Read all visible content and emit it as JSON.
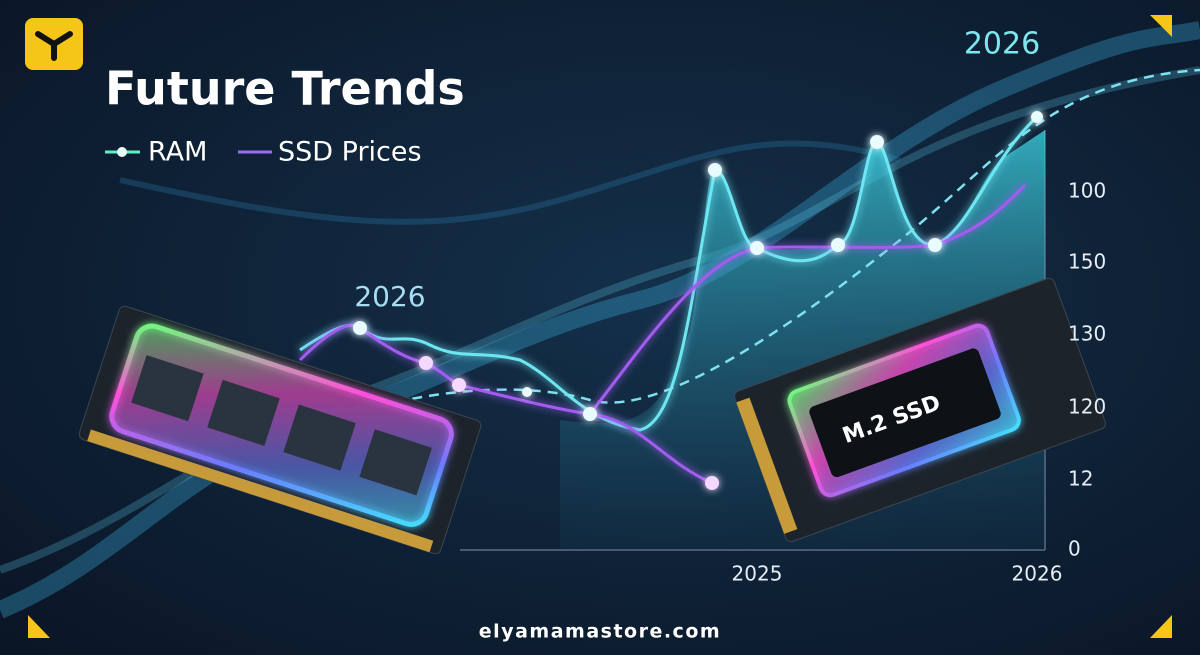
{
  "header": {
    "title": "Future Trends",
    "legend": [
      "RAM",
      "SSD Prices"
    ]
  },
  "annotations": [
    "2026",
    "2026"
  ],
  "axis": {
    "y_labels": [
      "100",
      "150",
      "130",
      "120",
      "12",
      "0"
    ],
    "x_labels": [
      "2025",
      "2026"
    ]
  },
  "ssd_label": "M.2 SSD",
  "footer": "elyamamastore.com"
}
